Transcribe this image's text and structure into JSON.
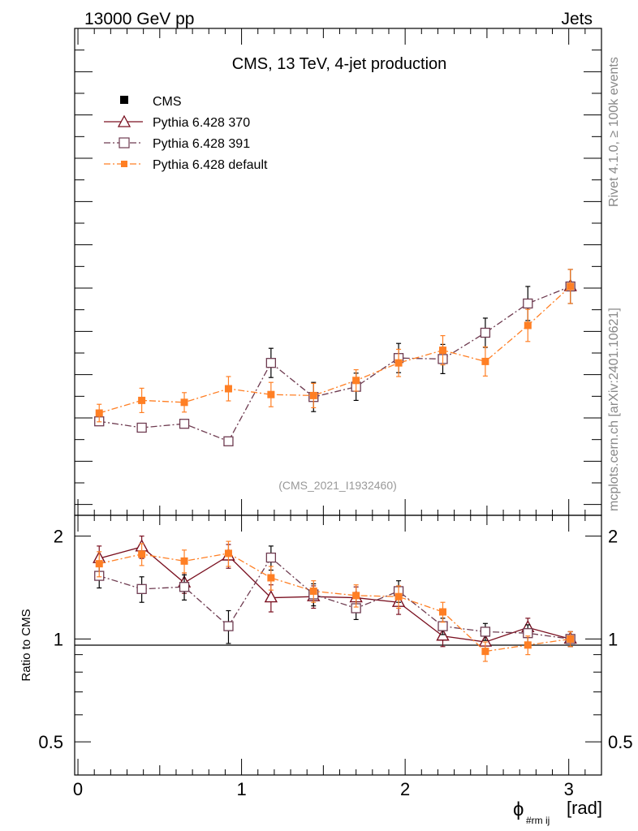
{
  "header": {
    "left": "13000 GeV pp",
    "right": "Jets"
  },
  "side": {
    "rivet": "Rivet 4.1.0, ≥ 100k events",
    "mcplots": "mcplots.cern.ch [arXiv:2401.10621]"
  },
  "chart_data": [
    {
      "type": "line",
      "title": "CMS, 13 TeV, 4-jet production",
      "analysis_label": "(CMS_2021_I1932460)",
      "xlabel_main": "ϕ",
      "xlabel_sub": "#rm ij",
      "xlabel_unit": "[rad]",
      "ylabel": "",
      "xlim": [
        -0.02,
        3.2
      ],
      "ylim": [
        0,
        1
      ],
      "yticks_visible": false,
      "x": [
        0.13,
        0.39,
        0.65,
        0.92,
        1.18,
        1.44,
        1.7,
        1.96,
        2.23,
        2.49,
        2.75,
        3.01
      ],
      "series": [
        {
          "name": "CMS",
          "color": "#000000",
          "marker": "filled-square",
          "line": "none",
          "values": [
            null,
            null,
            null,
            null,
            null,
            null,
            null,
            null,
            null,
            null,
            null,
            0.47
          ]
        },
        {
          "name": "Pythia 6.428 370",
          "color": "#7a1020",
          "marker": "open-triangle",
          "line": "solid",
          "values": [
            null,
            null,
            null,
            null,
            null,
            null,
            null,
            null,
            null,
            null,
            null,
            0.47
          ]
        },
        {
          "name": "Pythia 6.428 391",
          "color": "#6e3b50",
          "marker": "open-square",
          "line": "dashdot",
          "values": [
            0.193,
            0.18,
            0.188,
            0.152,
            0.313,
            0.243,
            0.264,
            0.323,
            0.321,
            0.375,
            0.435,
            0.47
          ],
          "errors": [
            0.0,
            0.0,
            0.0,
            0.0,
            0.03,
            0.03,
            0.028,
            0.03,
            0.03,
            0.03,
            0.035,
            0.035
          ]
        },
        {
          "name": "Pythia 6.428 default",
          "color": "#ff7f24",
          "marker": "filled-square",
          "line": "dashdot",
          "values": [
            0.21,
            0.236,
            0.232,
            0.26,
            0.248,
            0.246,
            0.277,
            0.313,
            0.339,
            0.316,
            0.39,
            0.47
          ],
          "errors": [
            0.018,
            0.025,
            0.02,
            0.025,
            0.025,
            0.025,
            0.022,
            0.028,
            0.03,
            0.03,
            0.033,
            0.035
          ]
        }
      ],
      "legend": "top-left"
    },
    {
      "type": "line",
      "ylabel": "Ratio to CMS",
      "ylim": [
        0.4,
        2.3
      ],
      "yscale": "log",
      "yticks": [
        0.5,
        1,
        2
      ],
      "ytick_labels": [
        "0.5",
        "1",
        "2"
      ],
      "xticks": [
        0,
        1,
        2,
        3
      ],
      "xtick_labels": [
        "0",
        "1",
        "2",
        "3"
      ],
      "reference_line": 1,
      "x": [
        0.13,
        0.39,
        0.65,
        0.92,
        1.18,
        1.44,
        1.7,
        1.96,
        2.23,
        2.49,
        2.75,
        3.01
      ],
      "series": [
        {
          "name": "Pythia 6.428 370",
          "color": "#7a1020",
          "marker": "open-triangle",
          "line": "solid",
          "values": [
            1.72,
            1.86,
            1.46,
            1.75,
            1.32,
            1.33,
            1.32,
            1.28,
            1.02,
            0.98,
            1.08,
            1.0
          ],
          "errors": [
            0.15,
            0.14,
            0.1,
            0.14,
            0.12,
            0.1,
            0.1,
            0.1,
            0.07,
            0.06,
            0.07,
            0.05
          ]
        },
        {
          "name": "Pythia 6.428 391",
          "color": "#6e3b50",
          "marker": "open-square",
          "line": "dashdot",
          "values": [
            1.53,
            1.4,
            1.42,
            1.09,
            1.73,
            1.35,
            1.23,
            1.38,
            1.09,
            1.05,
            1.04,
            1.0
          ],
          "errors": [
            0.12,
            0.12,
            0.12,
            0.12,
            0.14,
            0.1,
            0.09,
            0.1,
            0.06,
            0.06,
            0.06,
            0.05
          ]
        },
        {
          "name": "Pythia 6.428 default",
          "color": "#ff7f24",
          "marker": "filled-square",
          "line": "dashdot",
          "values": [
            1.66,
            1.77,
            1.69,
            1.78,
            1.51,
            1.38,
            1.34,
            1.33,
            1.2,
            0.92,
            0.96,
            1.0
          ],
          "errors": [
            0.14,
            0.13,
            0.13,
            0.15,
            0.12,
            0.1,
            0.1,
            0.1,
            0.08,
            0.06,
            0.06,
            0.05
          ]
        }
      ]
    }
  ]
}
